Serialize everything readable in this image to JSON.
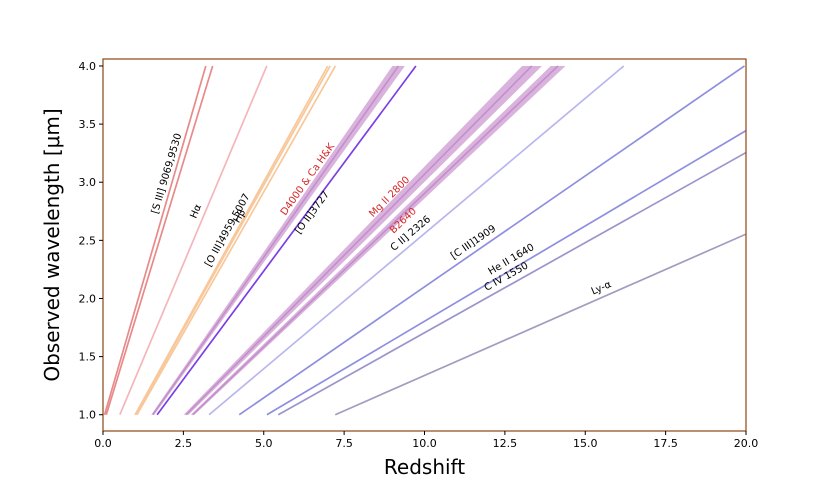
{
  "chart_data": {
    "type": "line",
    "title": "",
    "xlabel": "Redshift",
    "ylabel": "Observed wavelength [μm]",
    "xlim": [
      0.0,
      20.0
    ],
    "ylim": [
      0.86,
      4.06
    ],
    "xticks": [
      "0.0",
      "2.5",
      "5.0",
      "7.5",
      "10.0",
      "12.5",
      "15.0",
      "17.5",
      "20.0"
    ],
    "yticks": [
      "1.0",
      "1.5",
      "2.0",
      "2.5",
      "3.0",
      "3.5",
      "4.0"
    ],
    "grid": false,
    "legend": "none",
    "frame_color": "#8b4513",
    "series": [
      {
        "name": "[S III] 9069,9530",
        "rest_wavelength_um": [
          0.9069,
          0.953
        ],
        "color": "#e88a8a",
        "label_color": "#000000",
        "band": false
      },
      {
        "name": "Hα",
        "rest_wavelength_um": [
          0.6563
        ],
        "color": "#f4b6ba",
        "label_color": "#000000",
        "band": false
      },
      {
        "name": "[O III]4959,5007",
        "rest_wavelength_um": [
          0.4959,
          0.5007
        ],
        "color": "#f8c79a",
        "label_color": "#000000",
        "band": false
      },
      {
        "name": "Hβ",
        "rest_wavelength_um": [
          0.4861
        ],
        "color": "#f8c79a",
        "label_color": "#000000",
        "band": false
      },
      {
        "name": "D4000 & Ca H&K",
        "rest_wavelength_um": [
          0.385,
          0.4
        ],
        "color": "#d4a5d8",
        "label_color": "#d62728",
        "band": true
      },
      {
        "name": "[O II]3727",
        "rest_wavelength_um": [
          0.3727
        ],
        "color": "#7b3fe4",
        "label_color": "#000000",
        "band": false
      },
      {
        "name": "Mg II 2800",
        "rest_wavelength_um": [
          0.273,
          0.285
        ],
        "color": "#d4a5d8",
        "label_color": "#d62728",
        "band": true
      },
      {
        "name": "B2640",
        "rest_wavelength_um": [
          0.26,
          0.268
        ],
        "color": "#d4a5d8",
        "label_color": "#d62728",
        "band": true
      },
      {
        "name": "C II] 2326",
        "rest_wavelength_um": [
          0.2326
        ],
        "color": "#b9b6ee",
        "label_color": "#000000",
        "band": false
      },
      {
        "name": "[C III]1909",
        "rest_wavelength_um": [
          0.1909
        ],
        "color": "#8e8ee0",
        "label_color": "#000000",
        "band": false
      },
      {
        "name": "He II 1640",
        "rest_wavelength_um": [
          0.164
        ],
        "color": "#8e8ee0",
        "label_color": "#000000",
        "band": false
      },
      {
        "name": "C IV 1550",
        "rest_wavelength_um": [
          0.155
        ],
        "color": "#9c95cc",
        "label_color": "#000000",
        "band": false
      },
      {
        "name": "Ly-α",
        "rest_wavelength_um": [
          0.1216
        ],
        "color": "#a49bc0",
        "label_color": "#000000",
        "band": false
      }
    ]
  }
}
